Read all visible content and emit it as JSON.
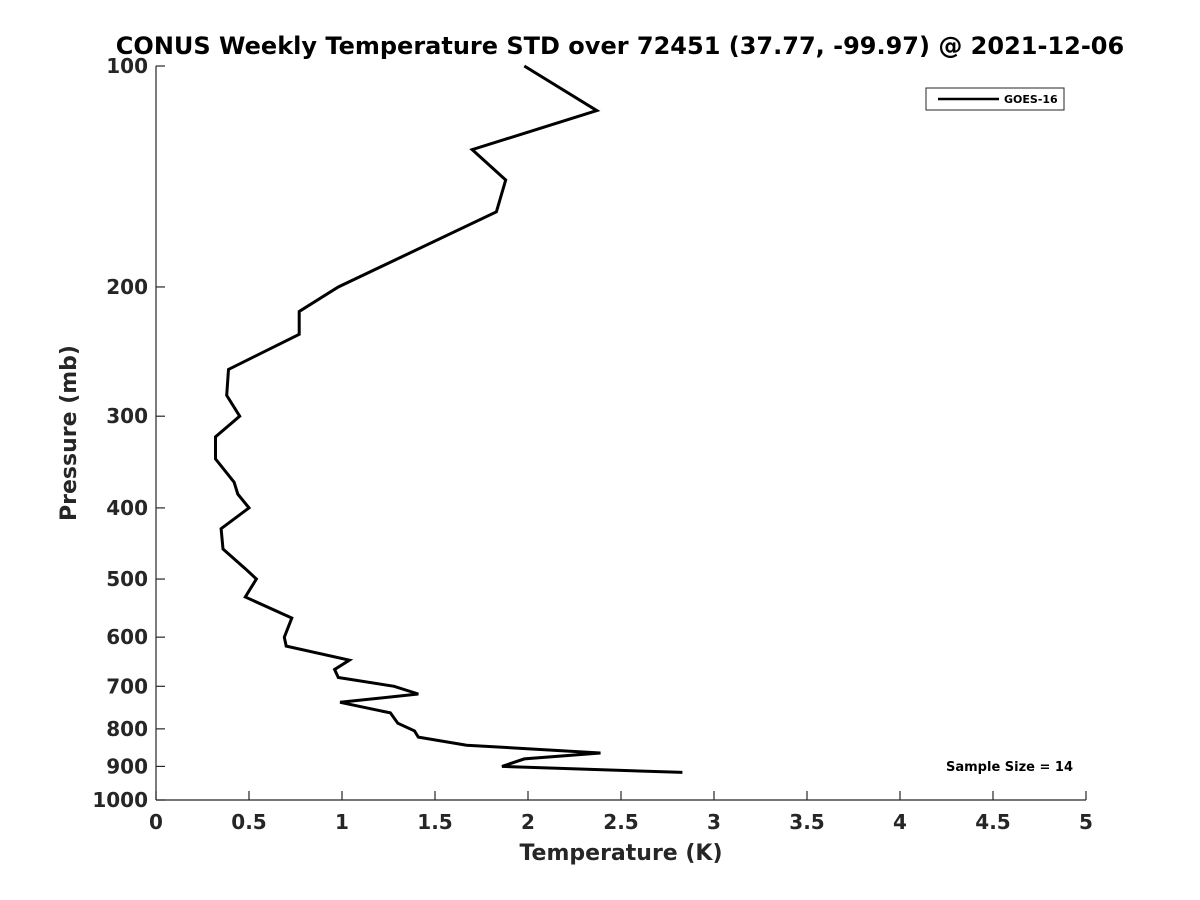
{
  "chart_data": {
    "type": "line",
    "title": "CONUS Weekly Temperature STD over 72451 (37.77, -99.97) @ 2021-12-06",
    "xlabel": "Temperature (K)",
    "ylabel": "Pressure (mb)",
    "xlim": [
      0,
      5
    ],
    "ylim": [
      100,
      1000
    ],
    "y_scale": "log",
    "y_reversed": true,
    "grid": false,
    "legend_position": "top-right",
    "x_ticks": [
      "0",
      "0.5",
      "1",
      "1.5",
      "2",
      "2.5",
      "3",
      "3.5",
      "4",
      "4.5",
      "5"
    ],
    "y_ticks": [
      "100",
      "200",
      "300",
      "400",
      "500",
      "600",
      "700",
      "800",
      "900",
      "1000"
    ],
    "series": [
      {
        "name": "GOES-16",
        "color": "#000000",
        "points": [
          [
            1.98,
            100
          ],
          [
            2.37,
            115
          ],
          [
            1.7,
            130
          ],
          [
            1.88,
            143
          ],
          [
            1.83,
            158
          ],
          [
            0.98,
            200
          ],
          [
            0.77,
            216
          ],
          [
            0.77,
            232
          ],
          [
            0.39,
            259
          ],
          [
            0.38,
            281
          ],
          [
            0.45,
            300
          ],
          [
            0.32,
            320
          ],
          [
            0.32,
            343
          ],
          [
            0.42,
            369
          ],
          [
            0.44,
            383
          ],
          [
            0.5,
            400
          ],
          [
            0.35,
            427
          ],
          [
            0.36,
            455
          ],
          [
            0.48,
            484
          ],
          [
            0.54,
            500
          ],
          [
            0.48,
            529
          ],
          [
            0.73,
            565
          ],
          [
            0.69,
            600
          ],
          [
            0.7,
            617
          ],
          [
            1.04,
            645
          ],
          [
            0.96,
            664
          ],
          [
            0.98,
            681
          ],
          [
            1.28,
            700
          ],
          [
            1.41,
            717
          ],
          [
            0.99,
            736
          ],
          [
            1.26,
            761
          ],
          [
            1.3,
            786
          ],
          [
            1.39,
            805
          ],
          [
            1.41,
            821
          ],
          [
            1.67,
            842
          ],
          [
            2.39,
            863
          ],
          [
            1.98,
            879
          ],
          [
            1.86,
            900
          ],
          [
            2.83,
            917
          ]
        ]
      }
    ],
    "annotation": "Sample Size = 14"
  }
}
